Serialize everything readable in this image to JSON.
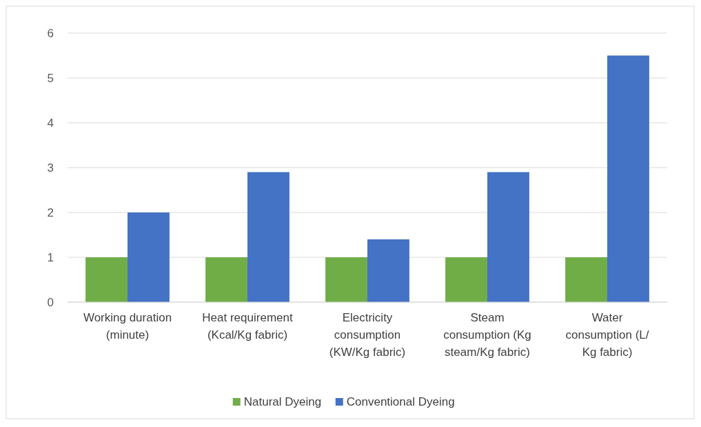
{
  "chart_data": {
    "type": "bar",
    "categories": [
      "Working duration (minute)",
      "Heat requirement (Kcal/Kg fabric)",
      "Electricity consumption (KW/Kg fabric)",
      "Steam consumption (Kg steam/Kg fabric)",
      "Water consumption (L/ Kg fabric)"
    ],
    "series": [
      {
        "name": "Natural Dyeing",
        "color": "#70ad47",
        "values": [
          1,
          1,
          1,
          1,
          1
        ]
      },
      {
        "name": "Conventional Dyeing",
        "color": "#4472c4",
        "values": [
          2,
          2.9,
          1.4,
          2.9,
          5.5
        ]
      }
    ],
    "ylim": [
      0,
      6
    ],
    "yticks": [
      0,
      1,
      2,
      3,
      4,
      5,
      6
    ],
    "grid": "y",
    "legend": "bottom"
  }
}
